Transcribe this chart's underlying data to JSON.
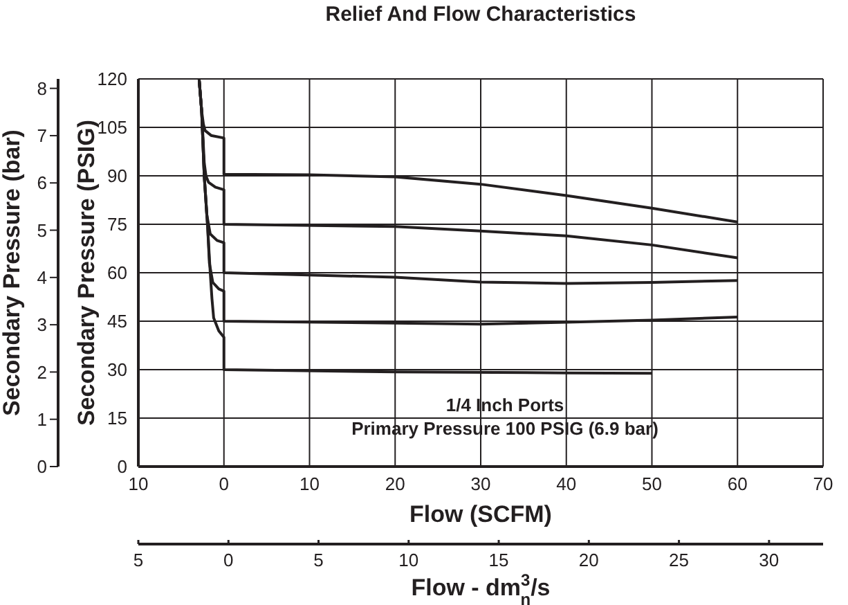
{
  "chart_data": {
    "type": "line",
    "title": "Relief And Flow Characteristics",
    "xlabel": "Flow (SCFM)",
    "ylabel": "Secondary Pressure (PSIG)",
    "y2label": "Secondary Pressure (bar)",
    "x2label": "Flow - dm$^{3}$$_{n}$/s",
    "annotations": [
      "1/4 Inch Ports",
      "Primary Pressure 100 PSIG (6.9 bar)"
    ],
    "xlim": [
      -10,
      70
    ],
    "xticks": [
      {
        "value": -10,
        "label": "10"
      },
      0,
      10,
      20,
      30,
      40,
      50,
      60,
      70
    ],
    "ylim": [
      0,
      120
    ],
    "yticks": [
      0,
      15,
      30,
      45,
      60,
      75,
      90,
      105,
      120
    ],
    "y2lim": [
      0,
      8.2
    ],
    "y2ticks": [
      0,
      1,
      2,
      3,
      4,
      5,
      6,
      7,
      8
    ],
    "x2lim": [
      -5,
      33
    ],
    "x2ticks": [
      {
        "value": -5,
        "label": "5"
      },
      0,
      5,
      10,
      15,
      20,
      25,
      30
    ],
    "grid": true,
    "marker": "none",
    "line_style": "solid",
    "series": [
      {
        "color": "#231f20",
        "x": [
          -2.9,
          -2.6,
          -2.4,
          -2.2,
          -1.5,
          0,
          0,
          10,
          20,
          30,
          40,
          50,
          60
        ],
        "values": [
          120,
          110,
          106,
          104,
          102.5,
          101.7,
          90.5,
          90.3,
          89.7,
          87.4,
          83.9,
          80,
          75.7
        ]
      },
      {
        "color": "#231f20",
        "x": [
          -2.9,
          -2.6,
          -2.3,
          -2.1,
          -1.8,
          -1,
          0,
          0,
          20,
          30,
          40,
          50,
          60
        ],
        "values": [
          120,
          110,
          94,
          90,
          88,
          86.5,
          85.7,
          75,
          74.3,
          72.9,
          71.4,
          68.6,
          64.6
        ]
      },
      {
        "color": "#231f20",
        "x": [
          -2.9,
          -2.6,
          -2.3,
          -2.0,
          -1.6,
          -0.8,
          0,
          0,
          20,
          30,
          40,
          50,
          60
        ],
        "values": [
          120,
          110,
          90,
          78,
          72,
          70,
          69.3,
          60,
          58.6,
          57.1,
          56.7,
          57,
          57.6
        ]
      },
      {
        "color": "#231f20",
        "x": [
          -2.9,
          -2.6,
          -2.3,
          -1.9,
          -1.7,
          -1.3,
          -0.6,
          0,
          0,
          20,
          30,
          40,
          50,
          60
        ],
        "values": [
          120,
          110,
          90,
          74,
          63,
          57,
          55,
          54.3,
          45,
          44.4,
          44.1,
          44.7,
          45.3,
          46.3
        ]
      },
      {
        "color": "#231f20",
        "x": [
          -2.9,
          -2.6,
          -2.3,
          -1.9,
          -1.6,
          -1.4,
          -1.2,
          -0.6,
          0,
          0,
          20,
          40,
          50
        ],
        "values": [
          120,
          110,
          90,
          74,
          60,
          52,
          46,
          42,
          40,
          30,
          29.3,
          29,
          28.9
        ]
      }
    ]
  }
}
